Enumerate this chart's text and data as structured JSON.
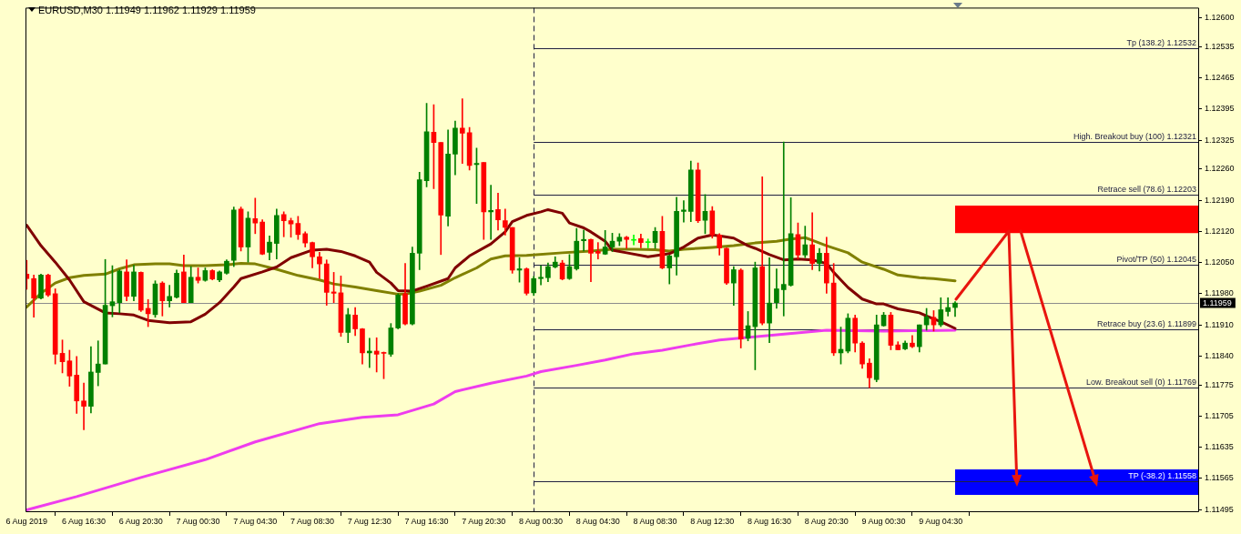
{
  "chart_data": {
    "type": "candlestick",
    "title": "EURUSD,M30 1.11949 1.11962 1.11929 1.11959",
    "x": [
      "2019-08-06T12:30",
      "2019-08-06T13:00",
      "2019-08-06T13:30",
      "2019-08-06T14:00",
      "2019-08-06T14:30",
      "2019-08-06T15:00",
      "2019-08-06T15:30",
      "2019-08-06T16:00",
      "2019-08-06T16:30",
      "2019-08-06T17:00",
      "2019-08-06T17:30",
      "2019-08-06T18:00",
      "2019-08-06T18:30",
      "2019-08-06T19:00",
      "2019-08-06T19:30",
      "2019-08-06T20:00",
      "2019-08-06T20:30",
      "2019-08-06T21:00",
      "2019-08-06T21:30",
      "2019-08-06T22:00",
      "2019-08-06T22:30",
      "2019-08-06T23:00",
      "2019-08-06T23:30",
      "2019-08-07T00:00",
      "2019-08-07T00:30",
      "2019-08-07T01:00",
      "2019-08-07T01:30",
      "2019-08-07T02:00",
      "2019-08-07T02:30",
      "2019-08-07T03:00",
      "2019-08-07T03:30",
      "2019-08-07T04:00",
      "2019-08-07T04:30",
      "2019-08-07T05:00",
      "2019-08-07T05:30",
      "2019-08-07T06:00",
      "2019-08-07T06:30",
      "2019-08-07T07:00",
      "2019-08-07T07:30",
      "2019-08-07T08:00",
      "2019-08-07T08:30",
      "2019-08-07T09:00",
      "2019-08-07T09:30",
      "2019-08-07T10:00",
      "2019-08-07T10:30",
      "2019-08-07T11:00",
      "2019-08-07T11:30",
      "2019-08-07T12:00",
      "2019-08-07T12:30",
      "2019-08-07T13:00",
      "2019-08-07T13:30",
      "2019-08-07T14:00",
      "2019-08-07T14:30",
      "2019-08-07T15:00",
      "2019-08-07T15:30",
      "2019-08-07T16:00",
      "2019-08-07T16:30",
      "2019-08-07T17:00",
      "2019-08-07T17:30",
      "2019-08-07T18:00",
      "2019-08-07T18:30",
      "2019-08-07T19:00",
      "2019-08-07T19:30",
      "2019-08-07T20:00",
      "2019-08-07T20:30",
      "2019-08-07T21:00",
      "2019-08-07T21:30",
      "2019-08-07T22:00",
      "2019-08-07T22:30",
      "2019-08-07T23:00",
      "2019-08-07T23:30",
      "2019-08-08T00:00",
      "2019-08-08T00:30",
      "2019-08-08T01:00",
      "2019-08-08T01:30",
      "2019-08-08T02:00",
      "2019-08-08T02:30",
      "2019-08-08T03:00",
      "2019-08-08T03:30",
      "2019-08-08T04:00",
      "2019-08-08T04:30",
      "2019-08-08T05:00",
      "2019-08-08T05:30",
      "2019-08-08T06:00",
      "2019-08-08T06:30",
      "2019-08-08T07:00",
      "2019-08-08T07:30",
      "2019-08-08T08:00",
      "2019-08-08T08:30",
      "2019-08-08T09:00",
      "2019-08-08T09:30",
      "2019-08-08T10:00",
      "2019-08-08T10:30",
      "2019-08-08T11:00",
      "2019-08-08T11:30",
      "2019-08-08T12:00",
      "2019-08-08T12:30",
      "2019-08-08T13:00",
      "2019-08-08T13:30",
      "2019-08-08T14:00",
      "2019-08-08T14:30",
      "2019-08-08T15:00",
      "2019-08-08T15:30",
      "2019-08-08T16:00",
      "2019-08-08T16:30",
      "2019-08-08T17:00",
      "2019-08-08T17:30",
      "2019-08-08T18:00",
      "2019-08-08T18:30",
      "2019-08-08T19:00",
      "2019-08-08T19:30",
      "2019-08-08T20:00",
      "2019-08-08T20:30",
      "2019-08-08T21:00",
      "2019-08-08T21:30",
      "2019-08-08T22:00",
      "2019-08-08T22:30",
      "2019-08-08T23:00",
      "2019-08-08T23:30",
      "2019-08-09T00:00",
      "2019-08-09T00:30",
      "2019-08-09T01:00",
      "2019-08-09T01:30",
      "2019-08-09T02:00",
      "2019-08-09T02:30",
      "2019-08-09T03:00",
      "2019-08-09T03:30",
      "2019-08-09T04:00",
      "2019-08-09T04:30",
      "2019-08-09T05:00",
      "2019-08-09T05:30"
    ],
    "ohlc": [
      [
        1.12024,
        1.12055,
        1.1199,
        1.12014
      ],
      [
        1.12014,
        1.12022,
        1.11927,
        1.1197
      ],
      [
        1.1197,
        1.12024,
        1.11968,
        1.12022
      ],
      [
        1.12022,
        1.12024,
        1.11974,
        1.11977
      ],
      [
        1.1198,
        1.11991,
        1.11822,
        1.11844
      ],
      [
        1.11846,
        1.11876,
        1.11802,
        1.11827
      ],
      [
        1.11829,
        1.11853,
        1.11772,
        1.11795
      ],
      [
        1.11797,
        1.11839,
        1.11711,
        1.11739
      ],
      [
        1.11739,
        1.11779,
        1.11674,
        1.11727
      ],
      [
        1.11727,
        1.11861,
        1.11712,
        1.11804
      ],
      [
        1.11803,
        1.11874,
        1.11773,
        1.11822
      ],
      [
        1.11822,
        1.12057,
        1.11822,
        1.11954
      ],
      [
        1.11953,
        1.12043,
        1.11928,
        1.11962
      ],
      [
        1.1196,
        1.12034,
        1.11937,
        1.12031
      ],
      [
        1.12029,
        1.12056,
        1.11964,
        1.11974
      ],
      [
        1.11974,
        1.12044,
        1.11964,
        1.12029
      ],
      [
        1.12028,
        1.12029,
        1.1194,
        1.11943
      ],
      [
        1.11947,
        1.11967,
        1.11906,
        1.11935
      ],
      [
        1.11933,
        1.12009,
        1.11927,
        1.12002
      ],
      [
        1.12004,
        1.12007,
        1.1193,
        1.11964
      ],
      [
        1.11964,
        1.11999,
        1.1195,
        1.11974
      ],
      [
        1.11972,
        1.12033,
        1.1197,
        1.12026
      ],
      [
        1.12029,
        1.12067,
        1.1196,
        1.1196
      ],
      [
        1.1196,
        1.12041,
        1.1196,
        1.12017
      ],
      [
        1.12017,
        1.12038,
        1.12004,
        1.1201
      ],
      [
        1.1201,
        1.12038,
        1.12008,
        1.12032
      ],
      [
        1.12032,
        1.12034,
        1.12011,
        1.12013
      ],
      [
        1.12011,
        1.12031,
        1.12007,
        1.12029
      ],
      [
        1.12026,
        1.12056,
        1.12024,
        1.12053
      ],
      [
        1.12055,
        1.12175,
        1.12041,
        1.12168
      ],
      [
        1.1217,
        1.12175,
        1.12076,
        1.12085
      ],
      [
        1.12085,
        1.12164,
        1.12051,
        1.1215
      ],
      [
        1.12149,
        1.12195,
        1.12115,
        1.12139
      ],
      [
        1.12141,
        1.12146,
        1.12068,
        1.12069
      ],
      [
        1.12073,
        1.1211,
        1.12056,
        1.12096
      ],
      [
        1.12093,
        1.1217,
        1.12058,
        1.12156
      ],
      [
        1.12158,
        1.12164,
        1.12108,
        1.12144
      ],
      [
        1.12144,
        1.1215,
        1.12107,
        1.12137
      ],
      [
        1.12138,
        1.12154,
        1.12102,
        1.12113
      ],
      [
        1.12115,
        1.12119,
        1.12085,
        1.12094
      ],
      [
        1.12095,
        1.12096,
        1.12038,
        1.12063
      ],
      [
        1.12063,
        1.12073,
        1.12014,
        1.12047
      ],
      [
        1.12047,
        1.12056,
        1.11954,
        1.11983
      ],
      [
        1.11984,
        1.12028,
        1.1196,
        1.11981
      ],
      [
        1.11982,
        1.1202,
        1.11884,
        1.11893
      ],
      [
        1.11893,
        1.11947,
        1.1187,
        1.11933
      ],
      [
        1.11932,
        1.11949,
        1.11886,
        1.11901
      ],
      [
        1.11901,
        1.11902,
        1.11822,
        1.11847
      ],
      [
        1.11847,
        1.1188,
        1.11814,
        1.11851
      ],
      [
        1.11851,
        1.11881,
        1.11804,
        1.11844
      ],
      [
        1.11847,
        1.11849,
        1.11789,
        1.11846
      ],
      [
        1.11844,
        1.11913,
        1.11839,
        1.11903
      ],
      [
        1.11903,
        1.1198,
        1.11901,
        1.11977
      ],
      [
        1.1198,
        1.12048,
        1.1191,
        1.11912
      ],
      [
        1.11912,
        1.12085,
        1.1191,
        1.12071
      ],
      [
        1.12071,
        1.12253,
        1.12034,
        1.12236
      ],
      [
        1.12234,
        1.12408,
        1.1222,
        1.12344
      ],
      [
        1.12343,
        1.12405,
        1.12216,
        1.1232
      ],
      [
        1.1232,
        1.1232,
        1.12068,
        1.12157
      ],
      [
        1.12154,
        1.12348,
        1.12132,
        1.12294
      ],
      [
        1.12294,
        1.12368,
        1.12247,
        1.12352
      ],
      [
        1.12352,
        1.12418,
        1.12273,
        1.12341
      ],
      [
        1.12342,
        1.12354,
        1.12258,
        1.12268
      ],
      [
        1.1227,
        1.12307,
        1.12183,
        1.12273
      ],
      [
        1.12275,
        1.12275,
        1.12102,
        1.12164
      ],
      [
        1.12164,
        1.12224,
        1.12102,
        1.12167
      ],
      [
        1.12169,
        1.12206,
        1.12123,
        1.12146
      ],
      [
        1.12144,
        1.1217,
        1.12112,
        1.12129
      ],
      [
        1.12129,
        1.12129,
        1.12026,
        1.12033
      ],
      [
        1.12033,
        1.12061,
        1.12006,
        1.12036
      ],
      [
        1.12036,
        1.12038,
        1.11977,
        1.11981
      ],
      [
        1.11982,
        1.12019,
        1.11976,
        1.12014
      ],
      [
        1.12014,
        1.12043,
        1.12,
        1.12017
      ],
      [
        1.12016,
        1.12049,
        1.12007,
        1.12041
      ],
      [
        1.1204,
        1.12063,
        1.12038,
        1.12051
      ],
      [
        1.12049,
        1.12055,
        1.12011,
        1.12013
      ],
      [
        1.12014,
        1.12068,
        1.12012,
        1.12041
      ],
      [
        1.12036,
        1.12127,
        1.12033,
        1.12098
      ],
      [
        1.12099,
        1.12123,
        1.12076,
        1.12102
      ],
      [
        1.12102,
        1.12103,
        1.12007,
        1.12071
      ],
      [
        1.12075,
        1.12095,
        1.12058,
        1.12071
      ],
      [
        1.12069,
        1.12122,
        1.12068,
        1.12085
      ],
      [
        1.12085,
        1.12116,
        1.12075,
        1.12098
      ],
      [
        1.12098,
        1.12115,
        1.12088,
        1.12107
      ],
      [
        1.12107,
        1.12109,
        1.12082,
        1.12102
      ],
      [
        1.121,
        1.12112,
        1.1209,
        1.121
      ],
      [
        1.12104,
        1.12114,
        1.12083,
        1.12095
      ],
      [
        1.12095,
        1.12103,
        1.12083,
        1.12095
      ],
      [
        1.12095,
        1.12129,
        1.12082,
        1.1212
      ],
      [
        1.1212,
        1.12154,
        1.12036,
        1.12038
      ],
      [
        1.12038,
        1.12067,
        1.12002,
        1.12065
      ],
      [
        1.12063,
        1.12197,
        1.12022,
        1.12165
      ],
      [
        1.12165,
        1.12189,
        1.12141,
        1.12168
      ],
      [
        1.12165,
        1.12278,
        1.12142,
        1.12258
      ],
      [
        1.12258,
        1.12274,
        1.1214,
        1.12144
      ],
      [
        1.12145,
        1.12203,
        1.12115,
        1.12165
      ],
      [
        1.12166,
        1.12176,
        1.12105,
        1.12112
      ],
      [
        1.12112,
        1.12115,
        1.12067,
        1.12083
      ],
      [
        1.12082,
        1.12083,
        1.12001,
        1.12004
      ],
      [
        1.12004,
        1.12041,
        1.11954,
        1.12034
      ],
      [
        1.12033,
        1.12036,
        1.11858,
        1.11878
      ],
      [
        1.1188,
        1.1194,
        1.11874,
        1.11908
      ],
      [
        1.11906,
        1.12051,
        1.11809,
        1.12038
      ],
      [
        1.12041,
        1.12243,
        1.1191,
        1.11914
      ],
      [
        1.11914,
        1.12061,
        1.1187,
        1.11959
      ],
      [
        1.1196,
        1.12036,
        1.11947,
        1.11991
      ],
      [
        1.11989,
        1.12321,
        1.1193,
        1.12001
      ],
      [
        1.11999,
        1.12196,
        1.11997,
        1.12115
      ],
      [
        1.12113,
        1.12139,
        1.12058,
        1.12067
      ],
      [
        1.12067,
        1.12132,
        1.12061,
        1.1209
      ],
      [
        1.1209,
        1.12162,
        1.12034,
        1.12048
      ],
      [
        1.12048,
        1.12082,
        1.12031,
        1.12071
      ],
      [
        1.12071,
        1.12107,
        1.11981,
        1.12004
      ],
      [
        1.12004,
        1.12048,
        1.11841,
        1.11847
      ],
      [
        1.11847,
        1.11905,
        1.11822,
        1.11855
      ],
      [
        1.11851,
        1.11935,
        1.11847,
        1.11925
      ],
      [
        1.11925,
        1.11932,
        1.11849,
        1.11869
      ],
      [
        1.11869,
        1.11872,
        1.11812,
        1.11822
      ],
      [
        1.11824,
        1.11834,
        1.11769,
        1.11791
      ],
      [
        1.11787,
        1.11932,
        1.11782,
        1.1191
      ],
      [
        1.11908,
        1.11938,
        1.11907,
        1.11932
      ],
      [
        1.11932,
        1.11938,
        1.11854,
        1.11864
      ],
      [
        1.11865,
        1.11872,
        1.11854,
        1.11854
      ],
      [
        1.11856,
        1.11874,
        1.11854,
        1.11869
      ],
      [
        1.11869,
        1.11886,
        1.11859,
        1.11861
      ],
      [
        1.11861,
        1.1191,
        1.11849,
        1.1191
      ],
      [
        1.1191,
        1.11947,
        1.11898,
        1.11928
      ],
      [
        1.11927,
        1.11942,
        1.11896,
        1.1191
      ],
      [
        1.1191,
        1.11971,
        1.11906,
        1.11944
      ],
      [
        1.1194,
        1.11971,
        1.1193,
        1.11949
      ],
      [
        1.11949,
        1.11962,
        1.11929,
        1.11959
      ]
    ],
    "colors": [
      "#ff0000",
      "#ff0000",
      "#008000",
      "#ff0000",
      "#ff0000",
      "#ff0000",
      "#ff0000",
      "#ff0000",
      "#ff0000",
      "#008000",
      "#008000",
      "#008000",
      "#008000",
      "#008000",
      "#ff0000",
      "#008000",
      "#ff0000",
      "#ff0000",
      "#008000",
      "#ff0000",
      "#008000",
      "#008000",
      "#ff0000",
      "#008000",
      "#ff0000",
      "#008000",
      "#ff0000",
      "#008000",
      "#008000",
      "#008000",
      "#ff0000",
      "#008000",
      "#ff0000",
      "#ff0000",
      "#008000",
      "#008000",
      "#ff0000",
      "#ff0000",
      "#ff0000",
      "#ff0000",
      "#ff0000",
      "#ff0000",
      "#ff0000",
      "#ff0000",
      "#ff0000",
      "#008000",
      "#ff0000",
      "#ff0000",
      "#008000",
      "#ff0000",
      "#ff0000",
      "#008000",
      "#008000",
      "#ff0000",
      "#008000",
      "#008000",
      "#008000",
      "#ff0000",
      "#ff0000",
      "#008000",
      "#008000",
      "#ff0000",
      "#ff0000",
      "#008000",
      "#ff0000",
      "#008000",
      "#ff0000",
      "#ff0000",
      "#ff0000",
      "#008000",
      "#ff0000",
      "#008000",
      "#008000",
      "#008000",
      "#008000",
      "#ff0000",
      "#008000",
      "#008000",
      "#008000",
      "#ff0000",
      "#ff0000",
      "#008000",
      "#008000",
      "#008000",
      "#ff0000",
      "#00ff00",
      "#ff0000",
      "#00ff00",
      "#008000",
      "#ff0000",
      "#008000",
      "#008000",
      "#008000",
      "#008000",
      "#ff0000",
      "#008000",
      "#ff0000",
      "#ff0000",
      "#ff0000",
      "#008000",
      "#ff0000",
      "#008000",
      "#008000",
      "#ff0000",
      "#008000",
      "#008000",
      "#008000",
      "#008000",
      "#ff0000",
      "#008000",
      "#ff0000",
      "#008000",
      "#ff0000",
      "#ff0000",
      "#008000",
      "#008000",
      "#ff0000",
      "#ff0000",
      "#ff0000",
      "#008000",
      "#008000",
      "#ff0000",
      "#ff0000",
      "#008000",
      "#ff0000",
      "#008000",
      "#008000",
      "#ff0000",
      "#008000",
      "#008000",
      "#008000"
    ],
    "series": [
      {
        "type": "line",
        "color": "#800000",
        "x": [
          "2019-08-06T12:30",
          "2019-08-06T13:30",
          "2019-08-06T14:30",
          "2019-08-06T15:30",
          "2019-08-06T16:30",
          "2019-08-06T18:00",
          "2019-08-06T19:00",
          "2019-08-06T20:00",
          "2019-08-06T21:00",
          "2019-08-06T22:30",
          "2019-08-07T00:00",
          "2019-08-07T01:00",
          "2019-08-07T02:00",
          "2019-08-07T03:00",
          "2019-08-07T03:30",
          "2019-08-07T05:00",
          "2019-08-07T06:00",
          "2019-08-07T07:00",
          "2019-08-07T08:30",
          "2019-08-07T09:30",
          "2019-08-07T10:30",
          "2019-08-07T11:30",
          "2019-08-07T12:30",
          "2019-08-07T13:00",
          "2019-08-07T14:00",
          "2019-08-07T14:30",
          "2019-08-07T15:30",
          "2019-08-07T16:30",
          "2019-08-07T18:00",
          "2019-08-07T18:30",
          "2019-08-07T19:30",
          "2019-08-07T21:00",
          "2019-08-07T22:00",
          "2019-08-07T22:30",
          "2019-08-07T23:30",
          "2019-08-08T00:30",
          "2019-08-08T01:00",
          "2019-08-08T02:00",
          "2019-08-08T02:30",
          "2019-08-08T03:30",
          "2019-08-08T04:00",
          "2019-08-08T05:00",
          "2019-08-08T05:30",
          "2019-08-08T06:30",
          "2019-08-08T08:00",
          "2019-08-08T09:30",
          "2019-08-08T10:30",
          "2019-08-08T11:30",
          "2019-08-08T12:30",
          "2019-08-08T13:00",
          "2019-08-08T14:00",
          "2019-08-08T15:00",
          "2019-08-08T15:30",
          "2019-08-08T16:30",
          "2019-08-08T17:30",
          "2019-08-08T18:30",
          "2019-08-08T19:30",
          "2019-08-08T20:30",
          "2019-08-08T21:00",
          "2019-08-08T21:30",
          "2019-08-08T22:00",
          "2019-08-08T23:00",
          "2019-08-09T00:00",
          "2019-08-09T00:30",
          "2019-08-09T01:30",
          "2019-08-09T03:00",
          "2019-08-09T03:30",
          "2019-08-09T04:30",
          "2019-08-09T05:30"
        ],
        "values": [
          1.12134,
          1.12088,
          1.12051,
          1.12011,
          1.11962,
          1.11937,
          1.11935,
          1.11932,
          1.1192,
          1.11915,
          1.11917,
          1.11934,
          1.1196,
          1.11995,
          1.12014,
          1.12029,
          1.1204,
          1.12061,
          1.12078,
          1.1208,
          1.12075,
          1.12065,
          1.12051,
          1.12028,
          1.12004,
          1.11987,
          1.11986,
          1.11997,
          1.12014,
          1.12038,
          1.12065,
          1.12092,
          1.12119,
          1.12142,
          1.12156,
          1.12164,
          1.12169,
          1.12161,
          1.12139,
          1.12128,
          1.12119,
          1.12098,
          1.12078,
          1.12072,
          1.12063,
          1.1207,
          1.12085,
          1.12105,
          1.12112,
          1.1211,
          1.12105,
          1.12088,
          1.12082,
          1.12068,
          1.12056,
          1.12058,
          1.12056,
          1.12048,
          1.12028,
          1.12011,
          1.11994,
          1.11968,
          1.11957,
          1.11957,
          1.11946,
          1.11937,
          1.1193,
          1.11917,
          1.11902
        ]
      },
      {
        "type": "line",
        "color": "#808000",
        "x": [
          "2019-08-06T12:30",
          "2019-08-06T13:30",
          "2019-08-06T14:30",
          "2019-08-06T15:30",
          "2019-08-06T16:30",
          "2019-08-06T18:00",
          "2019-08-06T19:00",
          "2019-08-06T20:00",
          "2019-08-06T21:30",
          "2019-08-06T22:30",
          "2019-08-06T23:30",
          "2019-08-07T01:00",
          "2019-08-07T02:30",
          "2019-08-07T03:30",
          "2019-08-07T04:30",
          "2019-08-07T06:00",
          "2019-08-07T07:30",
          "2019-08-07T09:00",
          "2019-08-07T10:00",
          "2019-08-07T11:30",
          "2019-08-07T13:00",
          "2019-08-07T14:30",
          "2019-08-07T15:00",
          "2019-08-07T16:00",
          "2019-08-07T17:30",
          "2019-08-07T18:30",
          "2019-08-07T20:00",
          "2019-08-07T21:00",
          "2019-08-07T22:00",
          "2019-08-07T23:30",
          "2019-08-08T02:00",
          "2019-08-08T04:00",
          "2019-08-08T05:30",
          "2019-08-08T07:00",
          "2019-08-08T08:30",
          "2019-08-08T09:30",
          "2019-08-08T10:30",
          "2019-08-08T12:30",
          "2019-08-08T14:00",
          "2019-08-08T15:30",
          "2019-08-08T17:00",
          "2019-08-08T18:00",
          "2019-08-08T19:00",
          "2019-08-08T19:30",
          "2019-08-08T20:30",
          "2019-08-08T22:00",
          "2019-08-08T23:00",
          "2019-08-09T00:30",
          "2019-08-09T01:30",
          "2019-08-09T03:00",
          "2019-08-09T04:00",
          "2019-08-09T05:30"
        ],
        "values": [
          1.1195,
          1.11981,
          1.12004,
          1.12016,
          1.12021,
          1.12024,
          1.12036,
          1.12045,
          1.12047,
          1.12047,
          1.12043,
          1.12043,
          1.12045,
          1.12048,
          1.12047,
          1.12035,
          1.12021,
          1.12011,
          1.12002,
          1.11995,
          1.11987,
          1.11979,
          1.11979,
          1.11986,
          1.11999,
          1.12016,
          1.12038,
          1.12058,
          1.12065,
          1.12066,
          1.12072,
          1.12076,
          1.1208,
          1.1208,
          1.12079,
          1.12076,
          1.1208,
          1.12084,
          1.12088,
          1.12094,
          1.12098,
          1.12103,
          1.12106,
          1.121,
          1.12088,
          1.12072,
          1.12051,
          1.12035,
          1.12022,
          1.12016,
          1.12014,
          1.12009
        ]
      },
      {
        "type": "line",
        "color": "#ee3cee",
        "x": [
          "2019-08-06T12:30",
          "2019-08-06T16:00",
          "2019-08-06T20:30",
          "2019-08-07T01:00",
          "2019-08-07T04:30",
          "2019-08-07T09:00",
          "2019-08-07T12:00",
          "2019-08-07T14:30",
          "2019-08-07T17:00",
          "2019-08-07T18:30",
          "2019-08-07T21:00",
          "2019-08-07T23:30",
          "2019-08-08T00:30",
          "2019-08-08T03:00",
          "2019-08-08T05:00",
          "2019-08-08T07:00",
          "2019-08-08T09:00",
          "2019-08-08T11:00",
          "2019-08-08T13:00",
          "2019-08-08T16:30",
          "2019-08-08T20:30",
          "2019-08-09T00:30",
          "2019-08-09T05:30"
        ],
        "values": [
          1.11494,
          1.11524,
          1.11567,
          1.11607,
          1.11647,
          1.11688,
          1.11702,
          1.11708,
          1.11732,
          1.1176,
          1.11779,
          1.11795,
          1.11805,
          1.11819,
          1.11831,
          1.11845,
          1.11853,
          1.11865,
          1.11876,
          1.11886,
          1.11898,
          1.11896,
          1.11898
        ]
      }
    ],
    "xlim": [
      "2019-08-06T12:25",
      "2019-08-09T22:35"
    ],
    "xticks": [
      {
        "value": "2019-08-06T12:30",
        "label": "6 Aug 2019"
      },
      {
        "value": "2019-08-06T16:30",
        "label": "6 Aug 16:30"
      },
      {
        "value": "2019-08-06T20:30",
        "label": "6 Aug 20:30"
      },
      {
        "value": "2019-08-07T00:30",
        "label": "7 Aug 00:30"
      },
      {
        "value": "2019-08-07T04:30",
        "label": "7 Aug 04:30"
      },
      {
        "value": "2019-08-07T08:30",
        "label": "7 Aug 08:30"
      },
      {
        "value": "2019-08-07T12:30",
        "label": "7 Aug 12:30"
      },
      {
        "value": "2019-08-07T16:30",
        "label": "7 Aug 16:30"
      },
      {
        "value": "2019-08-07T20:30",
        "label": "7 Aug 20:30"
      },
      {
        "value": "2019-08-08T00:30",
        "label": "8 Aug 00:30"
      },
      {
        "value": "2019-08-08T04:30",
        "label": "8 Aug 04:30"
      },
      {
        "value": "2019-08-08T08:30",
        "label": "8 Aug 08:30"
      },
      {
        "value": "2019-08-08T12:30",
        "label": "8 Aug 12:30"
      },
      {
        "value": "2019-08-08T16:30",
        "label": "8 Aug 16:30"
      },
      {
        "value": "2019-08-08T20:30",
        "label": "8 Aug 20:30"
      },
      {
        "value": "2019-08-09T00:30",
        "label": "9 Aug 00:30"
      },
      {
        "value": "2019-08-09T04:30",
        "label": "9 Aug 04:30"
      }
    ],
    "ylim": [
      1.11489,
      1.12623
    ],
    "yticks": [
      1.11495,
      1.11565,
      1.11635,
      1.11705,
      1.11775,
      {
        "value": 1.1184,
        "label": "1.11840"
      },
      {
        "value": 1.1191,
        "label": "1.11910"
      },
      {
        "value": 1.1198,
        "label": "1.11980"
      },
      {
        "value": 1.1205,
        "label": "1.12050"
      },
      {
        "value": 1.1212,
        "label": "1.12120"
      },
      {
        "value": 1.1219,
        "label": "1.12190"
      },
      {
        "value": 1.1226,
        "label": "1.12260"
      },
      1.12325,
      1.12395,
      1.12465,
      1.12535,
      {
        "value": 1.126,
        "label": "1.12600"
      }
    ],
    "ref_lines": [
      {
        "axis": "x",
        "value": "2019-08-08T00:00",
        "color": "#202040",
        "line_style": "dashed"
      },
      {
        "axis": "y",
        "value": 1.12532,
        "label": "Tp (138.2) 1.12532",
        "color": "#202040"
      },
      {
        "axis": "y",
        "value": 1.12321,
        "label": "High. Breakout buy (100) 1.12321",
        "color": "#202040"
      },
      {
        "axis": "y",
        "value": 1.12203,
        "label": "Retrace sell (78.6) 1.12203",
        "color": "#202040"
      },
      {
        "axis": "y",
        "value": 1.12045,
        "label": "Pivot/TP (50) 1.12045",
        "color": "#202040"
      },
      {
        "axis": "y",
        "value": 1.11899,
        "label": "Retrace buy (23.6) 1.11899",
        "color": "#202040"
      },
      {
        "axis": "y",
        "value": 1.11769,
        "label": "Low. Breakout sell (0) 1.11769",
        "color": "#202040"
      },
      {
        "axis": "y",
        "value": 1.11558,
        "label": "TP (-38.2) 1.11558",
        "color": "#202040"
      },
      {
        "axis": "y",
        "value": 1.11959,
        "label": "1.11959",
        "color": "#8c8c8c"
      }
    ],
    "bands": [
      {
        "axis": "y",
        "from": 1.12116,
        "to": 1.12178,
        "color": "#ff0000"
      },
      {
        "axis": "y",
        "from": 1.11528,
        "to": 1.11585,
        "color": "#0000ff"
      }
    ]
  }
}
